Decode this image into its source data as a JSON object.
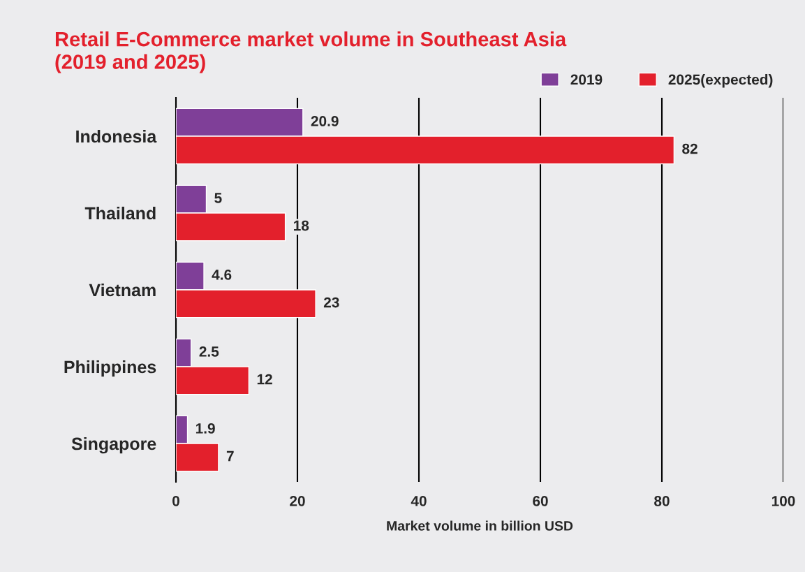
{
  "chart_data": {
    "type": "bar",
    "orientation": "horizontal",
    "title": "Retail E-Commerce market volume in Southeast Asia\n(2019 and 2025)",
    "xlabel": "Market volume in billion USD",
    "categories": [
      "Indonesia",
      "Thailand",
      "Vietnam",
      "Philippines",
      "Singapore"
    ],
    "series": [
      {
        "name": "2019",
        "color": "#7f3f98",
        "values": [
          20.9,
          5,
          4.6,
          2.5,
          1.9
        ]
      },
      {
        "name": "2025(expected)",
        "color": "#e3202c",
        "values": [
          82,
          18,
          23,
          12,
          7
        ]
      }
    ],
    "xlim": [
      0,
      100
    ],
    "xticks": [
      0,
      20,
      40,
      60,
      80,
      100
    ],
    "grid": "x",
    "legend": "top right",
    "data_labels": true
  }
}
